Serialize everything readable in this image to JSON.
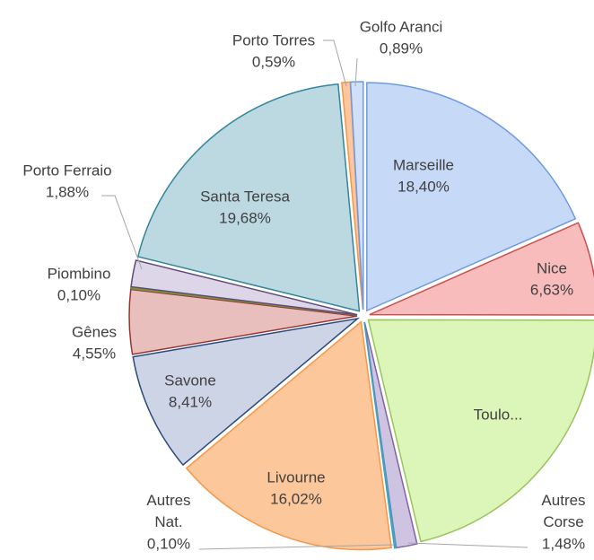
{
  "chart_data": {
    "type": "pie",
    "categories": [
      "Marseille",
      "Nice",
      "Toulo...",
      "Autres Corse",
      "Autres Nat.",
      "Livourne",
      "Savone",
      "Gênes",
      "Piombino",
      "Porto Ferraio",
      "Santa Teresa",
      "Porto Torres",
      "Golfo Aranci"
    ],
    "values": [
      18.4,
      6.63,
      21.27,
      1.48,
      0.1,
      16.02,
      8.41,
      4.55,
      0.1,
      1.88,
      19.68,
      0.59,
      0.89
    ],
    "value_labels": [
      "18,40%",
      "6,63%",
      null,
      "1,48%",
      "0,10%",
      "16,02%",
      "8,41%",
      "4,55%",
      "0,10%",
      "1,88%",
      "19,68%",
      "0,59%",
      "0,89%"
    ],
    "colors": [
      "#c6d9f7",
      "#f8bcbc",
      "#dcf5b8",
      "#cfc3e2",
      "#8fd3e4",
      "#fcc79a",
      "#cdd4e6",
      "#e9bfbe",
      "#c9d98f",
      "#ddd6e8",
      "#bcd9e2",
      "#fbc7a0",
      "#cfe0f7"
    ],
    "borders": [
      "#6f9ae0",
      "#c9504d",
      "#9bc45a",
      "#8064a2",
      "#3ea3c0",
      "#f79646",
      "#2b4a7a",
      "#963634",
      "#77933c",
      "#5f497a",
      "#31859c",
      "#f79646",
      "#6f9ae0"
    ]
  }
}
